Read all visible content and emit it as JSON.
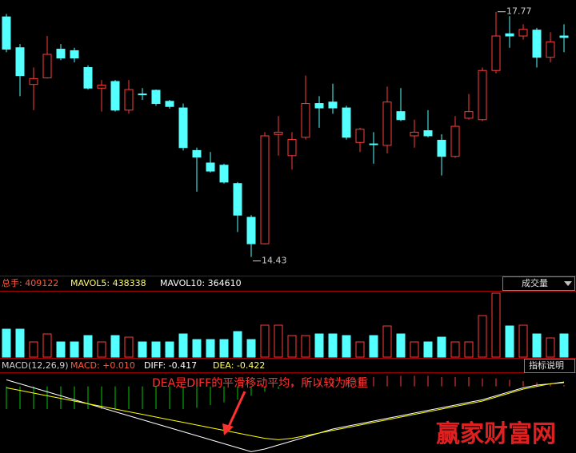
{
  "chart_data": [
    {
      "type": "candlestick",
      "ylim": [
        14.23,
        17.93
      ],
      "up_color": "#ff3c3c",
      "down_color": "#54ffff",
      "high_label": "17.77",
      "low_label": "14.43",
      "open": [
        17.7,
        17.28,
        16.78,
        16.87,
        17.26,
        17.24,
        17.01,
        16.73,
        16.82,
        16.43,
        16.65,
        16.7,
        16.55,
        16.46,
        15.88,
        15.71,
        15.68,
        15.43,
        14.97,
        14.61,
        16.1,
        15.81,
        16.06,
        16.52,
        16.54,
        16.46,
        15.99,
        15.97,
        15.95,
        16.41,
        16.08,
        16.15,
        16.02,
        15.8,
        16.32,
        16.3,
        16.97,
        17.47,
        17.44,
        17.52,
        17.15,
        17.44
      ],
      "high": [
        17.74,
        17.33,
        17.01,
        17.44,
        17.33,
        17.28,
        17.04,
        16.84,
        16.84,
        16.84,
        16.73,
        16.71,
        16.57,
        16.52,
        15.92,
        15.86,
        15.7,
        15.45,
        15.0,
        16.13,
        16.35,
        16.13,
        16.9,
        16.62,
        16.79,
        16.49,
        16.19,
        16.13,
        16.75,
        16.73,
        16.3,
        16.43,
        16.1,
        16.35,
        16.65,
        17.01,
        17.77,
        17.71,
        17.6,
        17.55,
        17.49,
        17.6
      ],
      "low": [
        17.22,
        16.62,
        16.43,
        16.86,
        17.11,
        17.08,
        16.71,
        16.41,
        16.41,
        16.38,
        16.57,
        16.49,
        16.45,
        15.88,
        15.32,
        15.58,
        15.43,
        14.77,
        14.43,
        14.6,
        15.81,
        15.62,
        16.03,
        16.19,
        16.38,
        16.03,
        15.86,
        15.7,
        15.84,
        16.28,
        15.92,
        16.06,
        15.54,
        15.78,
        16.3,
        16.28,
        16.93,
        17.28,
        17.39,
        17.01,
        17.08,
        17.22
      ],
      "close": [
        17.26,
        16.9,
        16.86,
        17.19,
        17.14,
        17.14,
        16.73,
        16.77,
        16.43,
        16.71,
        16.64,
        16.52,
        16.48,
        15.92,
        15.79,
        15.6,
        15.45,
        15.0,
        14.61,
        16.08,
        16.13,
        16.03,
        16.52,
        16.46,
        16.46,
        16.06,
        16.17,
        15.96,
        16.54,
        16.3,
        16.13,
        16.08,
        15.8,
        16.21,
        16.41,
        16.97,
        17.44,
        17.44,
        17.53,
        17.15,
        17.36,
        17.42
      ]
    },
    {
      "type": "bar",
      "title": "成交量",
      "header": [
        "总手: 409122",
        "MAVOL5: 438338",
        "MAVOL10: 364610"
      ],
      "ylim": [
        0,
        1198500
      ],
      "values": [
        493500,
        493500,
        267900,
        408900,
        267900,
        267900,
        380700,
        267900,
        380700,
        352500,
        267900,
        267900,
        267900,
        408900,
        310200,
        310200,
        310200,
        451200,
        310200,
        564000,
        564000,
        380700,
        380700,
        408900,
        408900,
        380700,
        267900,
        380700,
        549900,
        408900,
        267900,
        267900,
        352500,
        267900,
        267900,
        733200,
        1128000,
        549900,
        564000,
        408900,
        338400,
        409122
      ]
    },
    {
      "type": "macd",
      "title": "MACD(12,26,9)",
      "header": [
        "MACD: +0.010",
        "DIFF: -0.417",
        "DEA: -0.422"
      ],
      "button": "指标说明",
      "annotation": "DEA是DIFF的平滑移动平均，所以较为稳重",
      "ylim": [
        -0.95,
        -0.35
      ],
      "y2lim": [
        -0.5,
        0.1
      ],
      "up_color": "#ff3c3c",
      "down_color": "#00c800",
      "series": [
        {
          "axis": "y2",
          "values": [
            -0.17,
            -0.17,
            -0.17,
            -0.17,
            -0.17,
            -0.17,
            -0.17,
            -0.17,
            -0.17,
            -0.17,
            -0.17,
            -0.17,
            -0.17,
            -0.17,
            -0.16,
            -0.14,
            -0.12,
            -0.1,
            -0.07,
            -0.04,
            -0.02,
            0.02,
            0.04,
            0.05,
            0.06,
            0.06,
            0.07,
            0.07,
            0.08,
            0.08,
            0.08,
            0.08,
            0.07,
            0.07,
            0.07,
            0.06,
            0.06,
            0.05,
            0.04,
            0.03,
            0.02,
            0.01
          ]
        },
        {
          "color": "#ffffff",
          "values": [
            -0.4,
            -0.43,
            -0.46,
            -0.49,
            -0.52,
            -0.55,
            -0.58,
            -0.61,
            -0.64,
            -0.67,
            -0.7,
            -0.73,
            -0.76,
            -0.79,
            -0.82,
            -0.85,
            -0.88,
            -0.91,
            -0.94,
            -0.92,
            -0.89,
            -0.86,
            -0.83,
            -0.8,
            -0.77,
            -0.75,
            -0.73,
            -0.71,
            -0.69,
            -0.67,
            -0.65,
            -0.63,
            -0.61,
            -0.59,
            -0.57,
            -0.55,
            -0.52,
            -0.49,
            -0.46,
            -0.44,
            -0.43,
            -0.417
          ]
        },
        {
          "color": "#ffff00",
          "values": [
            -0.46,
            -0.48,
            -0.5,
            -0.52,
            -0.54,
            -0.56,
            -0.58,
            -0.6,
            -0.62,
            -0.64,
            -0.66,
            -0.68,
            -0.7,
            -0.72,
            -0.74,
            -0.76,
            -0.78,
            -0.8,
            -0.82,
            -0.84,
            -0.85,
            -0.84,
            -0.82,
            -0.8,
            -0.78,
            -0.76,
            -0.74,
            -0.72,
            -0.7,
            -0.68,
            -0.66,
            -0.64,
            -0.62,
            -0.6,
            -0.58,
            -0.56,
            -0.53,
            -0.5,
            -0.47,
            -0.45,
            -0.43,
            -0.422
          ]
        }
      ]
    }
  ],
  "watermark": "赢家财富网"
}
